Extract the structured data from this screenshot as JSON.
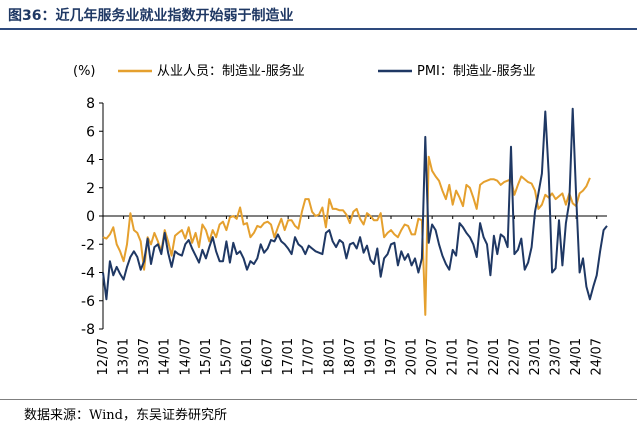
{
  "header": {
    "title": "图36：近几年服务业就业指数开始弱于制造业"
  },
  "footer": {
    "source": "数据来源：Wind，东吴证券研究所"
  },
  "chart_data": {
    "type": "line",
    "title": "图36：近几年服务业就业指数开始弱于制造业",
    "ylabel": "(%)",
    "xlabel": "",
    "ylim": [
      -8,
      8
    ],
    "yticks": [
      -8,
      -6,
      -4,
      -2,
      0,
      2,
      4,
      6,
      8
    ],
    "grid": false,
    "legend_position": "top",
    "x_ticks": [
      "12/07",
      "13/01",
      "13/07",
      "14/01",
      "14/07",
      "15/01",
      "15/07",
      "16/01",
      "16/07",
      "17/01",
      "17/07",
      "18/01",
      "18/07",
      "19/01",
      "19/07",
      "20/01",
      "20/07",
      "21/01",
      "21/07",
      "22/01",
      "22/07",
      "23/01",
      "23/07",
      "24/01",
      "24/07"
    ],
    "x_start": "2012-07",
    "frequency": "monthly",
    "colors": {
      "employment": "#e5a02e",
      "pmi": "#1f3864",
      "axis": "#000000"
    },
    "series": [
      {
        "name": "从业人员：制造业-服务业",
        "values": [
          -1.5,
          -1.6,
          -1.3,
          -0.8,
          -2.0,
          -2.5,
          -3.2,
          -2.0,
          0.2,
          -1.0,
          -1.2,
          -1.8,
          -3.8,
          -1.5,
          -2.0,
          -1.2,
          -1.8,
          -2.5,
          -1.0,
          -1.8,
          -2.8,
          -1.4,
          -1.2,
          -1.0,
          -1.6,
          -0.8,
          -1.9,
          -1.2,
          -2.2,
          -0.6,
          -1.0,
          -1.8,
          -1.0,
          -1.5,
          -0.6,
          -0.4,
          -1.0,
          -0.1,
          0.0,
          -0.2,
          0.6,
          -0.6,
          -0.5,
          -1.5,
          -1.2,
          -0.7,
          -0.8,
          -0.5,
          -0.4,
          -0.6,
          -1.5,
          -0.8,
          -0.2,
          -1.0,
          -0.3,
          -0.3,
          -0.7,
          -0.9,
          0.3,
          1.2,
          1.2,
          0.3,
          0.0,
          0.1,
          0.6,
          -0.8,
          1.2,
          0.5,
          0.5,
          0.4,
          0.4,
          0.1,
          -0.5,
          0.3,
          0.5,
          -0.2,
          -0.6,
          0.2,
          0.0,
          -0.3,
          -0.3,
          0.2,
          -1.5,
          -1.2,
          -1.0,
          -1.3,
          -1.5,
          -1.0,
          -0.6,
          -0.7,
          -1.3,
          -1.3,
          -0.2,
          -0.3,
          -7.0,
          4.2,
          3.2,
          2.8,
          2.5,
          1.8,
          1.2,
          2.2,
          0.8,
          1.8,
          1.3,
          0.7,
          2.2,
          2.0,
          1.3,
          0.5,
          2.2,
          2.4,
          2.5,
          2.6,
          2.6,
          2.5,
          2.2,
          2.4,
          2.5,
          2.6,
          1.5,
          2.2,
          2.8,
          2.6,
          2.4,
          2.3,
          1.8,
          0.5,
          0.8,
          1.5,
          1.3,
          1.6,
          1.2,
          1.4,
          1.6,
          0.8,
          1.6,
          0.9,
          0.7,
          1.6,
          1.8,
          2.1,
          2.7
        ]
      },
      {
        "name": "PMI：制造业-服务业",
        "values": [
          -4.0,
          -5.9,
          -3.2,
          -4.2,
          -3.6,
          -4.1,
          -4.5,
          -3.6,
          -2.9,
          -2.5,
          -2.9,
          -3.8,
          -3.2,
          -1.6,
          -3.4,
          -2.2,
          -2.0,
          -2.7,
          -1.2,
          -2.6,
          -3.6,
          -2.5,
          -2.7,
          -2.8,
          -2.0,
          -1.7,
          -2.3,
          -2.8,
          -3.3,
          -2.4,
          -3.0,
          -2.2,
          -1.5,
          -2.5,
          -3.2,
          -3.2,
          -1.8,
          -3.3,
          -1.9,
          -2.7,
          -2.5,
          -3.0,
          -3.8,
          -3.2,
          -3.4,
          -3.0,
          -2.0,
          -2.6,
          -2.3,
          -1.7,
          -1.8,
          -1.3,
          -1.8,
          -2.0,
          -2.3,
          -2.7,
          -1.5,
          -2.0,
          -2.2,
          -2.7,
          -2.1,
          -2.3,
          -2.5,
          -2.6,
          -2.7,
          -1.2,
          -1.0,
          -1.8,
          -2.2,
          -1.7,
          -1.9,
          -3.0,
          -2.0,
          -1.9,
          -2.3,
          -1.5,
          -2.6,
          -2.1,
          -3.1,
          -3.4,
          -2.3,
          -4.3,
          -3.0,
          -2.7,
          -2.0,
          -1.9,
          -3.5,
          -2.5,
          -3.1,
          -2.7,
          -3.5,
          -3.0,
          -4.0,
          -3.0,
          5.6,
          -1.9,
          -0.6,
          -1.0,
          -2.0,
          -2.8,
          -3.4,
          -3.8,
          -2.4,
          -2.8,
          -0.5,
          -0.8,
          -1.2,
          -1.5,
          -2.0,
          -2.9,
          -0.5,
          -1.5,
          -2.0,
          -4.2,
          -1.4,
          -2.7,
          -1.3,
          -1.5,
          -2.2,
          4.9,
          -2.7,
          -2.4,
          -1.6,
          -3.8,
          -3.3,
          -2.2,
          0.3,
          1.6,
          3.0,
          7.4,
          3.0,
          -4.0,
          -3.7,
          -0.3,
          -3.5,
          -0.5,
          1.0,
          7.6,
          1.5,
          -4.0,
          -3.0,
          -5.0,
          -5.9,
          -5.0,
          -4.2,
          -2.5,
          -1.0,
          -0.7
        ]
      }
    ]
  }
}
